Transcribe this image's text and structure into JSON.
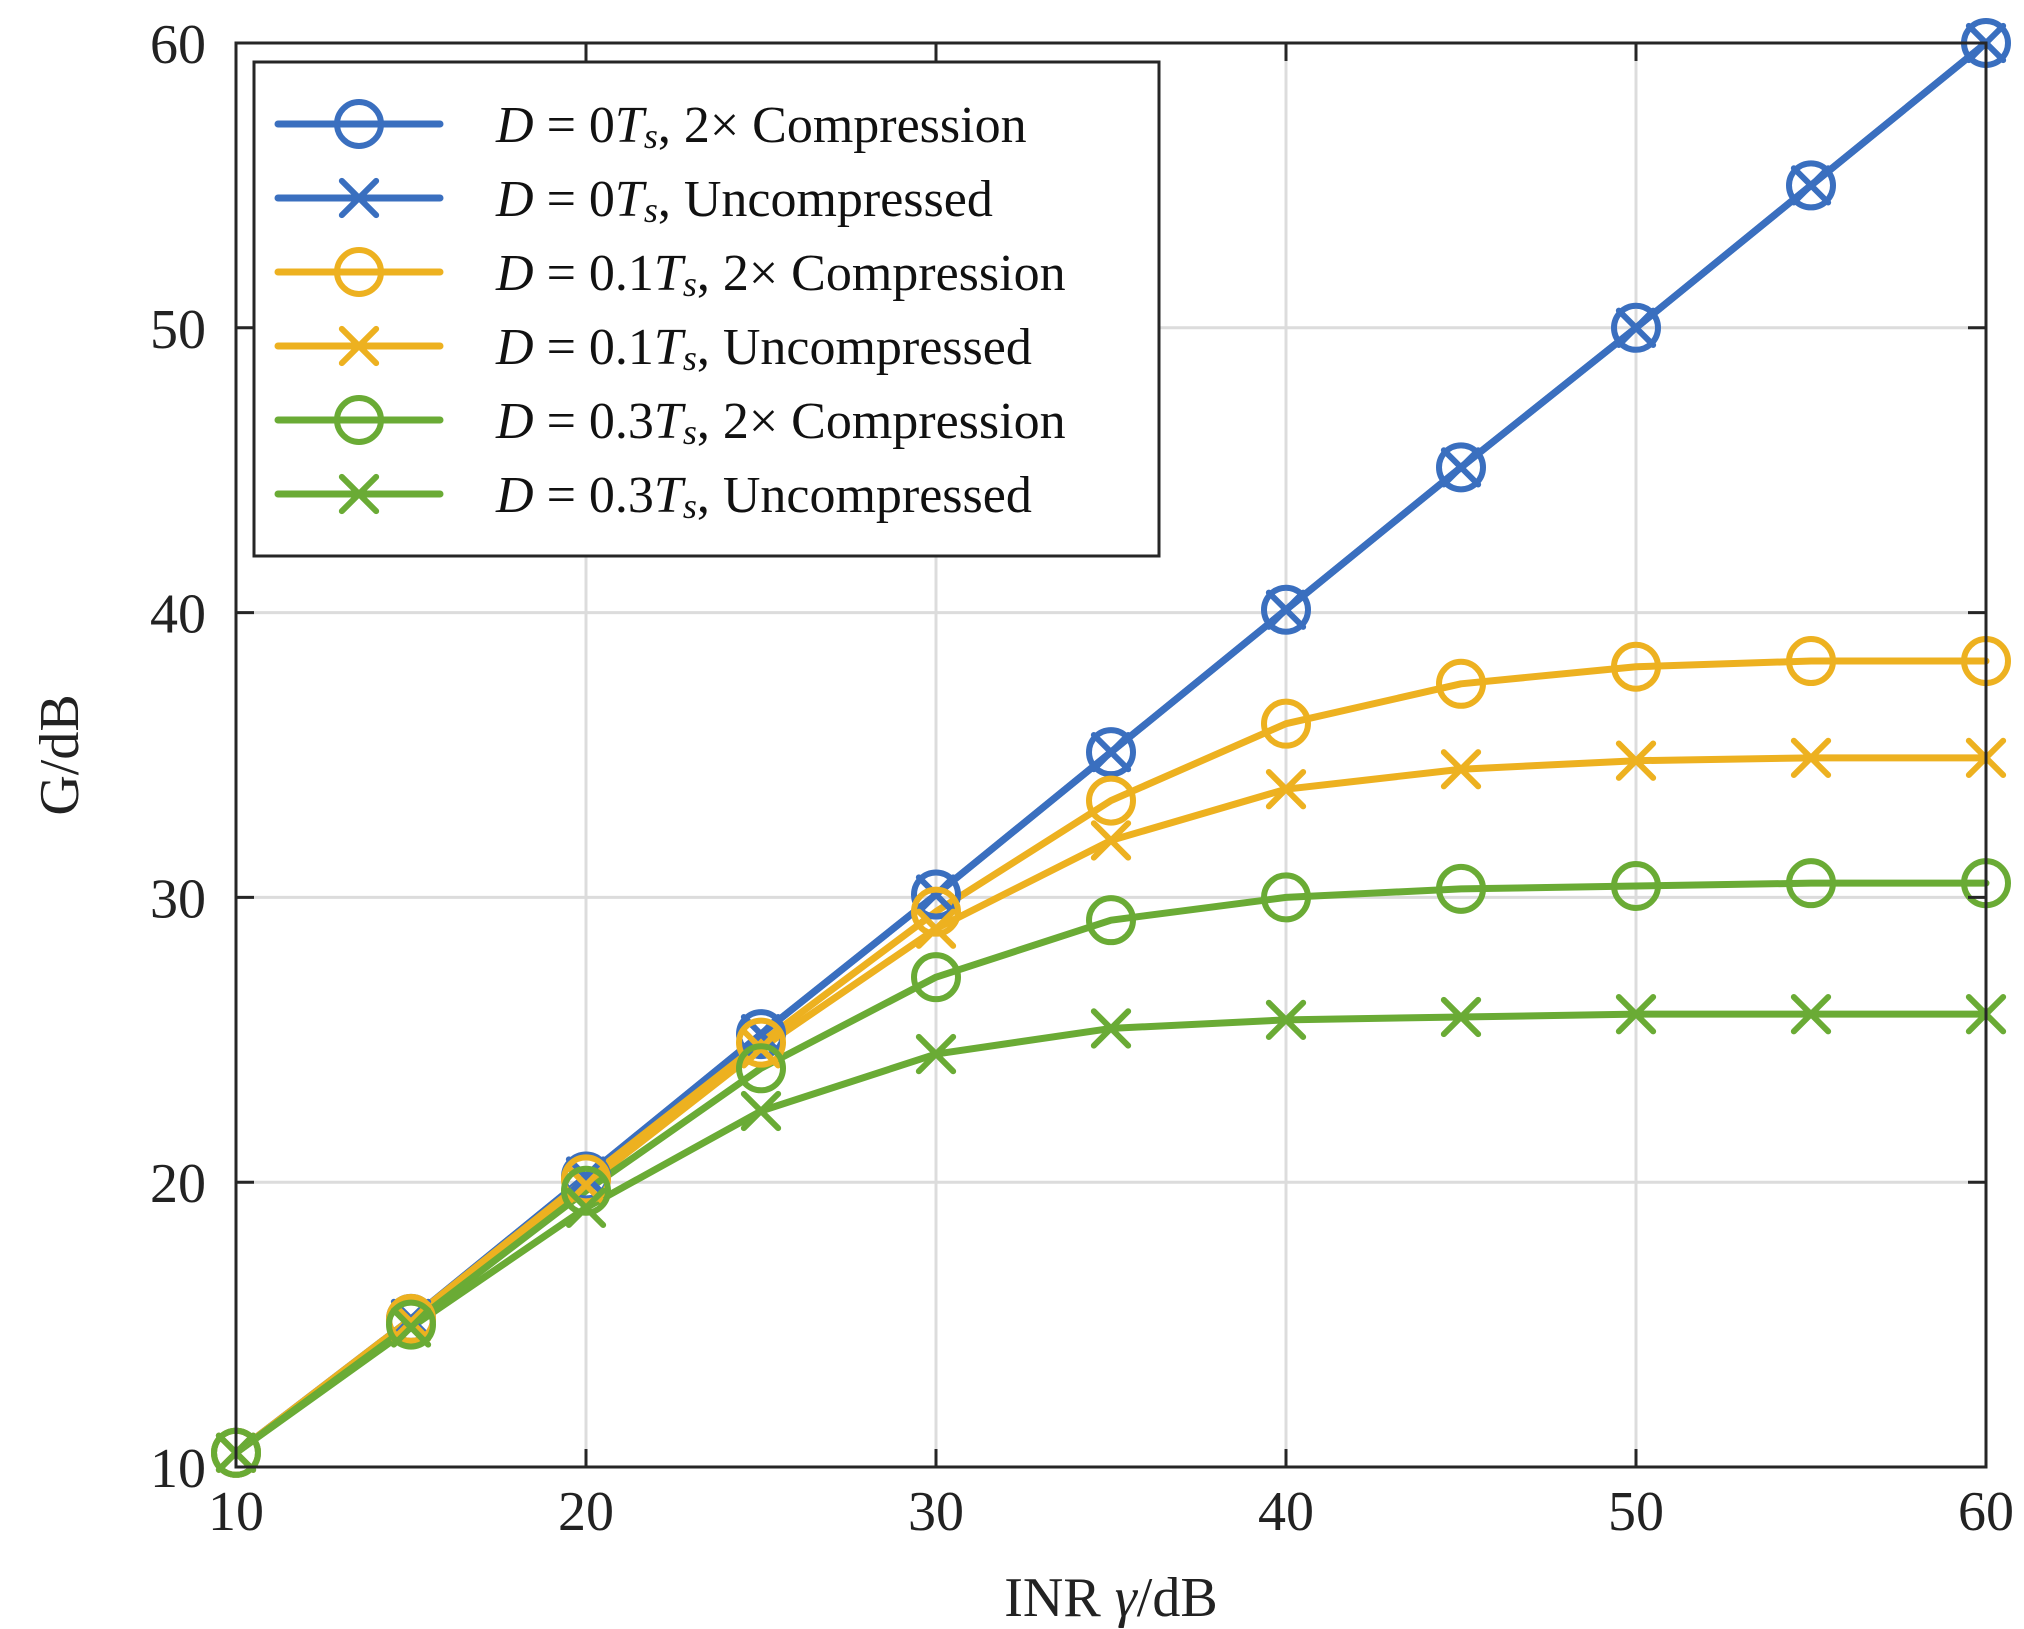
{
  "chart_data": {
    "type": "line",
    "xlabel_prefix": "INR ",
    "xlabel_symbol": "γ",
    "xlabel_suffix": "/dB",
    "ylabel": "G/dB",
    "xlim": [
      10,
      60
    ],
    "ylim": [
      10,
      60
    ],
    "xticks": [
      10,
      20,
      30,
      40,
      50,
      60
    ],
    "yticks": [
      10,
      20,
      30,
      40,
      50,
      60
    ],
    "xtick_labels": [
      "10",
      "20",
      "30",
      "40",
      "50",
      "60"
    ],
    "ytick_labels": [
      "10",
      "20",
      "30",
      "40",
      "50",
      "60"
    ],
    "grid": true,
    "legend_position": "top-left",
    "x": [
      10,
      15,
      20,
      25,
      30,
      35,
      40,
      45,
      50,
      55,
      60
    ],
    "series": [
      {
        "name": "D = 0Ts, 2× Compression",
        "legend": {
          "d": "D",
          "eq": " = 0",
          "ts": "T",
          "sub": "s",
          "rest": ", 2× Compression"
        },
        "color": "#3A6FBF",
        "marker": "circle",
        "values": [
          10.5,
          15.2,
          20.2,
          25.2,
          30.1,
          35.1,
          40.1,
          45.1,
          50.0,
          55.0,
          60.0
        ]
      },
      {
        "name": "D = 0Ts, Uncompressed",
        "legend": {
          "d": "D",
          "eq": " = 0",
          "ts": "T",
          "sub": "s",
          "rest": ", Uncompressed"
        },
        "color": "#3A6FBF",
        "marker": "x",
        "values": [
          10.5,
          15.2,
          20.2,
          25.2,
          30.1,
          35.1,
          40.1,
          45.1,
          50.0,
          55.0,
          60.0
        ]
      },
      {
        "name": "D = 0.1Ts, 2× Compression",
        "legend": {
          "d": "D",
          "eq": " = 0.1",
          "ts": "T",
          "sub": "s",
          "rest": ", 2× Compression"
        },
        "color": "#EDB120",
        "marker": "circle",
        "values": [
          10.5,
          15.2,
          20.1,
          24.9,
          29.5,
          33.4,
          36.1,
          37.5,
          38.1,
          38.3,
          38.3
        ]
      },
      {
        "name": "D = 0.1Ts, Uncompressed",
        "legend": {
          "d": "D",
          "eq": " = 0.1",
          "ts": "T",
          "sub": "s",
          "rest": ", Uncompressed"
        },
        "color": "#EDB120",
        "marker": "x",
        "values": [
          10.5,
          15.1,
          19.9,
          24.7,
          28.9,
          32.0,
          33.8,
          34.5,
          34.8,
          34.9,
          34.9
        ]
      },
      {
        "name": "D = 0.3Ts, 2× Compression",
        "legend": {
          "d": "D",
          "eq": " = 0.3",
          "ts": "T",
          "sub": "s",
          "rest": ", 2× Compression"
        },
        "color": "#6AAB35",
        "marker": "circle",
        "values": [
          10.5,
          15.0,
          19.7,
          24.0,
          27.2,
          29.2,
          30.0,
          30.3,
          30.4,
          30.5,
          30.5
        ]
      },
      {
        "name": "D = 0.3Ts, Uncompressed",
        "legend": {
          "d": "D",
          "eq": " = 0.3",
          "ts": "T",
          "sub": "s",
          "rest": ", Uncompressed"
        },
        "color": "#6AAB35",
        "marker": "x",
        "values": [
          10.5,
          14.9,
          19.1,
          22.5,
          24.5,
          25.4,
          25.7,
          25.8,
          25.9,
          25.9,
          25.9
        ]
      }
    ]
  }
}
